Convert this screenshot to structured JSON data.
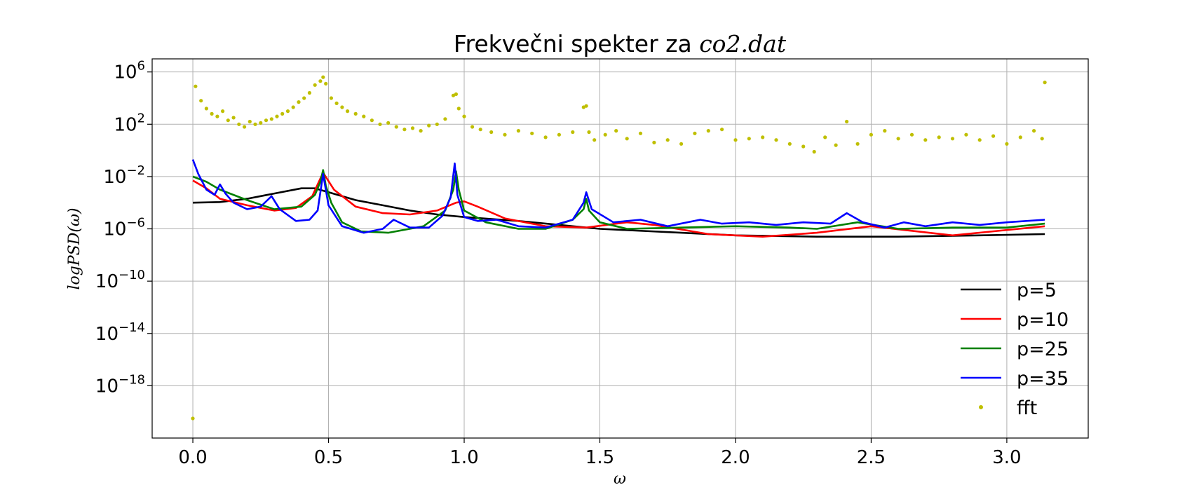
{
  "chart_data": {
    "type": "line",
    "title": "Frekvečni spekter za ",
    "title_math": "co2.dat",
    "xlabel": "ω",
    "ylabel": "logPSD(ω)",
    "xlim": [
      -0.15,
      3.3
    ],
    "ylim_log10": [
      -22,
      7
    ],
    "yscale": "log",
    "xticks": [
      "0.0",
      "0.5",
      "1.0",
      "1.5",
      "2.0",
      "2.5",
      "3.0"
    ],
    "xtick_values": [
      0,
      0.5,
      1.0,
      1.5,
      2.0,
      2.5,
      3.0
    ],
    "ytick_exponents": [
      6,
      2,
      -2,
      -6,
      -10,
      -14,
      -18
    ],
    "ytick_base": "10",
    "grid": true,
    "legend_position": "lower-right",
    "series": [
      {
        "name": "p=5",
        "color": "#000000",
        "kind": "line",
        "x": [
          0,
          0.1,
          0.2,
          0.3,
          0.4,
          0.45,
          0.5,
          0.6,
          0.7,
          0.8,
          0.9,
          1.0,
          1.2,
          1.5,
          1.8,
          2.0,
          2.3,
          2.6,
          2.9,
          3.14
        ],
        "log_y": [
          -4,
          -3.95,
          -3.7,
          -3.3,
          -2.9,
          -2.9,
          -3.2,
          -3.8,
          -4.2,
          -4.6,
          -4.9,
          -5.1,
          -5.4,
          -6.0,
          -6.3,
          -6.5,
          -6.6,
          -6.6,
          -6.5,
          -6.4
        ]
      },
      {
        "name": "p=10",
        "color": "#ff0000",
        "kind": "line",
        "x": [
          0,
          0.05,
          0.1,
          0.2,
          0.3,
          0.38,
          0.44,
          0.48,
          0.52,
          0.6,
          0.7,
          0.8,
          0.9,
          0.97,
          1.0,
          1.05,
          1.15,
          1.3,
          1.45,
          1.6,
          1.7,
          1.9,
          2.1,
          2.3,
          2.5,
          2.8,
          3.14
        ],
        "log_y": [
          -2.3,
          -2.9,
          -3.7,
          -4.2,
          -4.6,
          -4.4,
          -3.5,
          -1.7,
          -3.0,
          -4.3,
          -4.8,
          -4.9,
          -4.6,
          -4.0,
          -3.9,
          -4.3,
          -5.2,
          -5.8,
          -5.9,
          -5.5,
          -5.7,
          -6.4,
          -6.6,
          -6.3,
          -5.8,
          -6.5,
          -5.8
        ]
      },
      {
        "name": "p=25",
        "color": "#008000",
        "kind": "line",
        "x": [
          0,
          0.05,
          0.1,
          0.2,
          0.3,
          0.4,
          0.45,
          0.47,
          0.48,
          0.49,
          0.51,
          0.55,
          0.62,
          0.72,
          0.85,
          0.93,
          0.96,
          0.97,
          0.98,
          1.0,
          1.08,
          1.2,
          1.3,
          1.4,
          1.44,
          1.45,
          1.46,
          1.5,
          1.6,
          1.8,
          2.0,
          2.2,
          2.3,
          2.45,
          2.6,
          2.8,
          3.0,
          3.14
        ],
        "log_y": [
          -2.0,
          -2.4,
          -3.0,
          -3.8,
          -4.5,
          -4.3,
          -3.4,
          -2.4,
          -1.5,
          -2.7,
          -4.0,
          -5.5,
          -6.2,
          -6.3,
          -5.8,
          -4.6,
          -3.0,
          -1.6,
          -3.0,
          -4.6,
          -5.5,
          -6.0,
          -6.0,
          -5.3,
          -4.5,
          -3.7,
          -4.6,
          -5.5,
          -6.0,
          -5.9,
          -5.8,
          -5.9,
          -6.0,
          -5.5,
          -6.0,
          -5.9,
          -5.9,
          -5.6
        ]
      },
      {
        "name": "p=35",
        "color": "#0000ff",
        "kind": "line",
        "x": [
          0,
          0.02,
          0.05,
          0.08,
          0.1,
          0.12,
          0.15,
          0.2,
          0.25,
          0.29,
          0.32,
          0.38,
          0.43,
          0.46,
          0.48,
          0.5,
          0.55,
          0.63,
          0.7,
          0.74,
          0.8,
          0.87,
          0.92,
          0.95,
          0.965,
          0.975,
          1.0,
          1.05,
          1.12,
          1.2,
          1.3,
          1.4,
          1.44,
          1.45,
          1.47,
          1.55,
          1.65,
          1.75,
          1.87,
          1.95,
          2.05,
          2.15,
          2.25,
          2.35,
          2.41,
          2.47,
          2.55,
          2.62,
          2.7,
          2.8,
          2.9,
          3.0,
          3.14
        ],
        "log_y": [
          -0.7,
          -1.8,
          -3.0,
          -3.4,
          -2.6,
          -3.3,
          -4.0,
          -4.5,
          -4.3,
          -3.5,
          -4.5,
          -5.4,
          -5.3,
          -4.6,
          -1.8,
          -4.2,
          -5.8,
          -6.3,
          -6.0,
          -5.3,
          -5.9,
          -5.9,
          -5.0,
          -3.6,
          -1.0,
          -3.4,
          -5.1,
          -5.4,
          -5.3,
          -5.8,
          -5.9,
          -5.3,
          -4.0,
          -3.2,
          -4.5,
          -5.5,
          -5.3,
          -5.8,
          -5.3,
          -5.6,
          -5.5,
          -5.7,
          -5.5,
          -5.6,
          -4.8,
          -5.5,
          -5.9,
          -5.5,
          -5.8,
          -5.5,
          -5.7,
          -5.5,
          -5.3
        ]
      }
    ],
    "scatter": {
      "name": "fft",
      "color": "#bfbf00",
      "x": [
        0.0,
        0.01,
        0.03,
        0.05,
        0.07,
        0.09,
        0.11,
        0.13,
        0.15,
        0.17,
        0.19,
        0.21,
        0.23,
        0.25,
        0.27,
        0.29,
        0.31,
        0.33,
        0.35,
        0.37,
        0.39,
        0.41,
        0.43,
        0.45,
        0.47,
        0.48,
        0.49,
        0.51,
        0.53,
        0.55,
        0.57,
        0.6,
        0.63,
        0.66,
        0.69,
        0.72,
        0.75,
        0.78,
        0.81,
        0.84,
        0.87,
        0.9,
        0.93,
        0.96,
        0.97,
        0.98,
        1.0,
        1.03,
        1.06,
        1.1,
        1.15,
        1.2,
        1.25,
        1.3,
        1.35,
        1.4,
        1.44,
        1.45,
        1.46,
        1.48,
        1.52,
        1.56,
        1.6,
        1.65,
        1.7,
        1.75,
        1.8,
        1.85,
        1.9,
        1.95,
        2.0,
        2.05,
        2.1,
        2.15,
        2.2,
        2.25,
        2.29,
        2.33,
        2.37,
        2.41,
        2.45,
        2.5,
        2.55,
        2.6,
        2.65,
        2.7,
        2.75,
        2.8,
        2.85,
        2.9,
        2.95,
        3.0,
        3.05,
        3.1,
        3.13,
        3.14
      ],
      "log_y": [
        -20.5,
        4.9,
        3.8,
        3.2,
        2.8,
        2.6,
        3.0,
        2.3,
        2.5,
        2.0,
        1.8,
        2.2,
        2.0,
        2.1,
        2.3,
        2.4,
        2.6,
        2.8,
        3.0,
        3.3,
        3.7,
        4.0,
        4.4,
        5.0,
        5.3,
        5.6,
        5.1,
        4.0,
        3.6,
        3.3,
        3.0,
        2.8,
        2.6,
        2.3,
        2.0,
        2.1,
        1.8,
        1.6,
        1.7,
        1.5,
        1.9,
        2.0,
        2.4,
        4.2,
        4.3,
        3.2,
        2.6,
        1.8,
        1.6,
        1.4,
        1.2,
        1.5,
        1.3,
        1.0,
        1.2,
        1.4,
        3.3,
        3.4,
        1.4,
        0.8,
        1.2,
        1.5,
        0.9,
        1.3,
        0.6,
        0.8,
        0.5,
        1.3,
        1.5,
        1.6,
        0.8,
        0.9,
        1.0,
        0.8,
        0.5,
        0.3,
        -0.1,
        1.0,
        0.4,
        2.2,
        0.5,
        1.2,
        1.5,
        0.9,
        1.2,
        0.8,
        1.0,
        0.9,
        1.2,
        0.8,
        1.1,
        0.5,
        1.0,
        1.5,
        0.9,
        5.2
      ]
    }
  }
}
